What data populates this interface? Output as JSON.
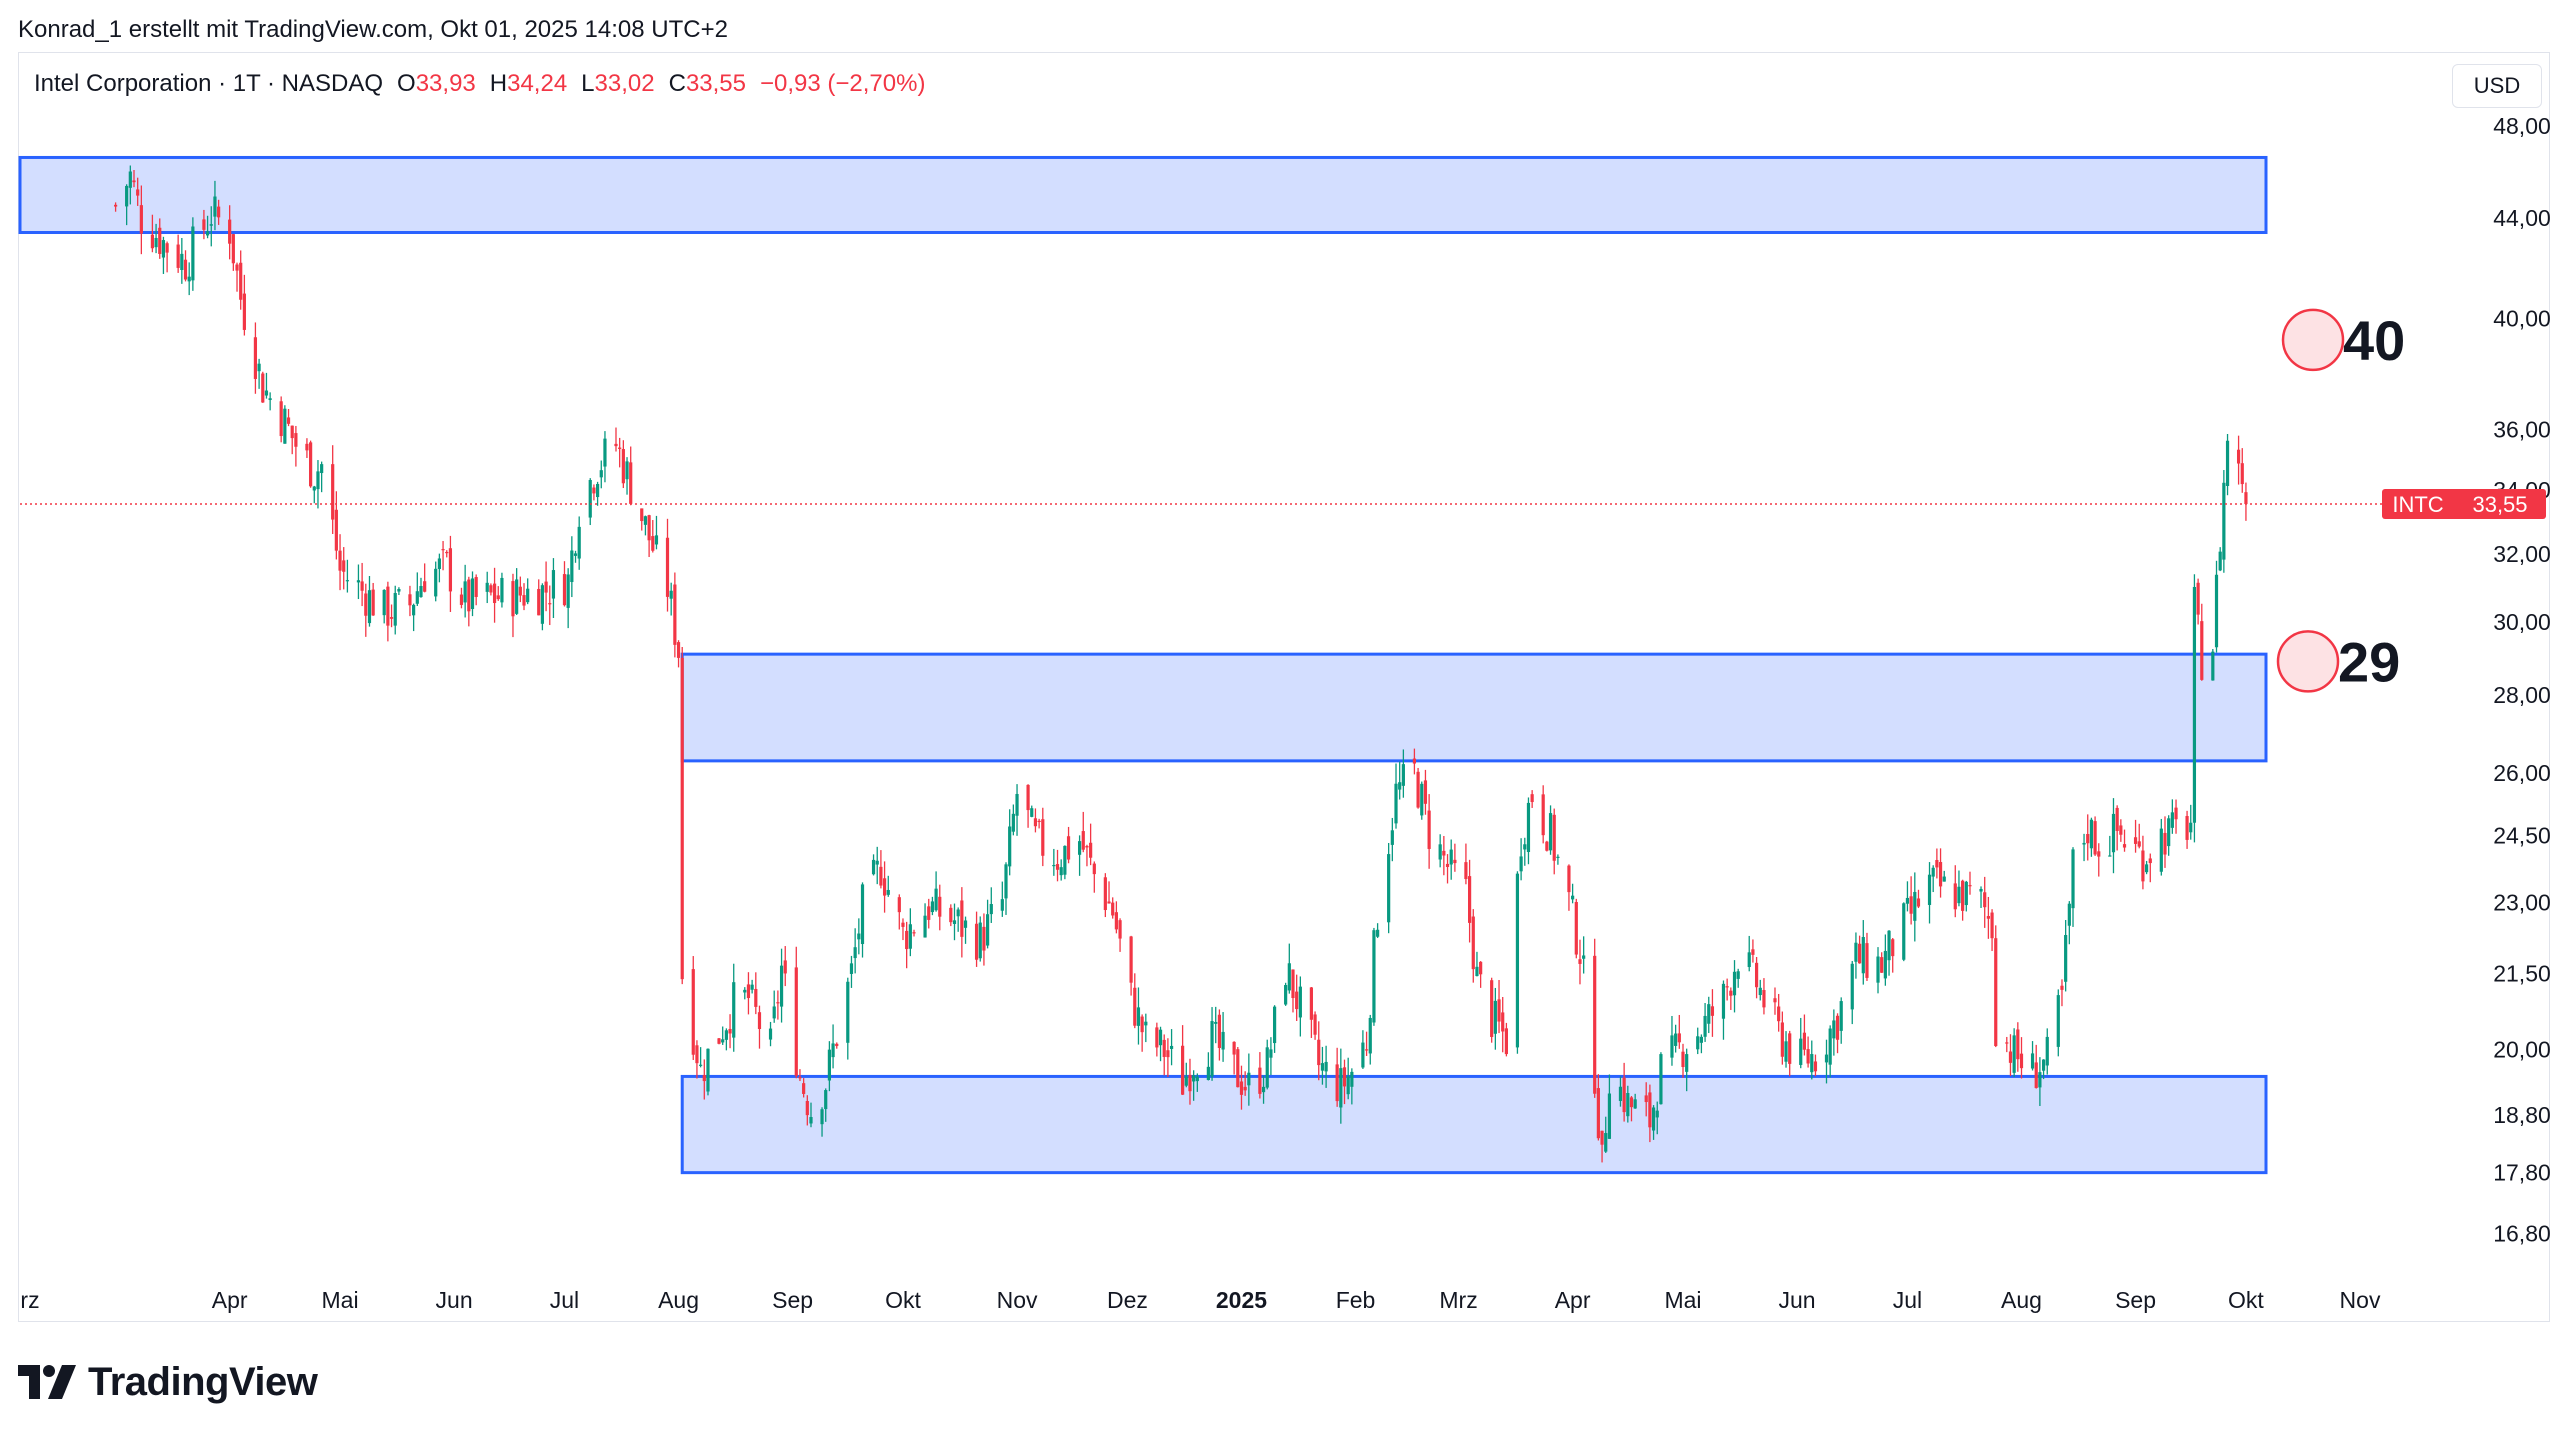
{
  "credit": "Konrad_1 erstellt mit TradingView.com, Okt 01, 2025 14:08 UTC+2",
  "legend": {
    "symbol": "Intel Corporation · 1T · NASDAQ",
    "open_label": "O",
    "open": "33,93",
    "high_label": "H",
    "high": "34,24",
    "low_label": "L",
    "low": "33,02",
    "close_label": "C",
    "close": "33,55",
    "change": "−0,93 (−2,70%)"
  },
  "currency": "USD",
  "price_tag": {
    "ticker": "INTC",
    "value": "33,55"
  },
  "annotations": [
    {
      "text": "40",
      "price": 39.2
    },
    {
      "text": "29",
      "price": 28.9
    }
  ],
  "logo_text": "TradingView",
  "colors": {
    "up": "#089981",
    "down": "#f23645",
    "zone_fill": "#d1dcff",
    "zone_stroke": "#2962ff",
    "grid": "#f0f3fa"
  },
  "chart_data": {
    "type": "candlestick",
    "title": "Intel Corporation · 1T · NASDAQ",
    "scale": "log",
    "ylim": [
      16.2,
      51.5
    ],
    "y_ticks": [
      "48,00",
      "44,00",
      "40,00",
      "36,00",
      "34,00",
      "32,00",
      "30,00",
      "28,00",
      "26,00",
      "24,50",
      "23,00",
      "21,50",
      "20,00",
      "18,80",
      "17,80",
      "16,80"
    ],
    "x_ticks": [
      "rz",
      "Apr",
      "Mai",
      "Jun",
      "Jul",
      "Aug",
      "Sep",
      "Okt",
      "Nov",
      "Dez",
      "2025",
      "Feb",
      "Mrz",
      "Apr",
      "Mai",
      "Jun",
      "Jul",
      "Aug",
      "Sep",
      "Okt",
      "Nov"
    ],
    "zones": [
      {
        "from_date": "2024-03-01",
        "to_date": "2025-10-01",
        "low": 43.4,
        "high": 46.6
      },
      {
        "from_date": "2024-08-02",
        "to_date": "2025-10-01",
        "low": 26.3,
        "high": 29.1
      },
      {
        "from_date": "2024-08-02",
        "to_date": "2025-10-01",
        "low": 17.8,
        "high": 19.5
      }
    ],
    "current_price": 33.55,
    "anchors": [
      [
        "2024-03-01",
        44.5
      ],
      [
        "2024-03-05",
        45.8
      ],
      [
        "2024-03-08",
        44.0
      ],
      [
        "2024-03-14",
        43.0
      ],
      [
        "2024-03-20",
        42.2
      ],
      [
        "2024-03-27",
        44.2
      ],
      [
        "2024-04-01",
        43.5
      ],
      [
        "2024-04-04",
        40.8
      ],
      [
        "2024-04-10",
        37.5
      ],
      [
        "2024-04-15",
        36.5
      ],
      [
        "2024-04-19",
        35.5
      ],
      [
        "2024-04-24",
        34.6
      ],
      [
        "2024-04-26",
        34.8
      ],
      [
        "2024-05-01",
        31.5
      ],
      [
        "2024-05-07",
        30.9
      ],
      [
        "2024-05-13",
        30.3
      ],
      [
        "2024-05-20",
        30.5
      ],
      [
        "2024-05-24",
        31.4
      ],
      [
        "2024-05-30",
        31.6
      ],
      [
        "2024-06-04",
        30.6
      ],
      [
        "2024-06-11",
        30.7
      ],
      [
        "2024-06-18",
        30.8
      ],
      [
        "2024-06-25",
        30.9
      ],
      [
        "2024-07-02",
        31.2
      ],
      [
        "2024-07-05",
        33.5
      ],
      [
        "2024-07-10",
        34.8
      ],
      [
        "2024-07-15",
        35.5
      ],
      [
        "2024-07-18",
        34.5
      ],
      [
        "2024-07-24",
        32.5
      ],
      [
        "2024-07-29",
        31.0
      ],
      [
        "2024-08-01",
        29.2
      ],
      [
        "2024-08-02",
        21.5
      ],
      [
        "2024-08-07",
        19.6
      ],
      [
        "2024-08-12",
        20.3
      ],
      [
        "2024-08-16",
        20.9
      ],
      [
        "2024-08-20",
        21.0
      ],
      [
        "2024-08-26",
        20.0
      ],
      [
        "2024-08-29",
        21.6
      ],
      [
        "2024-09-03",
        19.5
      ],
      [
        "2024-09-06",
        18.9
      ],
      [
        "2024-09-10",
        19.4
      ],
      [
        "2024-09-17",
        21.5
      ],
      [
        "2024-09-20",
        22.9
      ],
      [
        "2024-09-25",
        23.8
      ],
      [
        "2024-10-01",
        22.3
      ],
      [
        "2024-10-08",
        22.9
      ],
      [
        "2024-10-15",
        22.6
      ],
      [
        "2024-10-22",
        22.2
      ],
      [
        "2024-10-28",
        23.0
      ],
      [
        "2024-11-01",
        25.5
      ],
      [
        "2024-11-06",
        24.4
      ],
      [
        "2024-11-12",
        24.0
      ],
      [
        "2024-11-18",
        24.4
      ],
      [
        "2024-11-22",
        23.6
      ],
      [
        "2024-11-27",
        22.8
      ],
      [
        "2024-12-02",
        21.0
      ],
      [
        "2024-12-06",
        20.2
      ],
      [
        "2024-12-11",
        20.0
      ],
      [
        "2024-12-16",
        19.4
      ],
      [
        "2024-12-19",
        19.8
      ],
      [
        "2024-12-24",
        20.2
      ],
      [
        "2024-12-30",
        19.6
      ],
      [
        "2025-01-03",
        19.3
      ],
      [
        "2025-01-08",
        19.7
      ],
      [
        "2025-01-13",
        21.6
      ],
      [
        "2025-01-17",
        20.8
      ],
      [
        "2025-01-22",
        19.7
      ],
      [
        "2025-01-28",
        19.3
      ],
      [
        "2025-01-31",
        19.6
      ],
      [
        "2025-02-04",
        20.2
      ],
      [
        "2025-02-07",
        22.8
      ],
      [
        "2025-02-12",
        25.5
      ],
      [
        "2025-02-17",
        26.0
      ],
      [
        "2025-02-21",
        24.6
      ],
      [
        "2025-02-26",
        23.8
      ],
      [
        "2025-03-03",
        23.2
      ],
      [
        "2025-03-06",
        21.4
      ],
      [
        "2025-03-10",
        20.6
      ],
      [
        "2025-03-14",
        20.2
      ],
      [
        "2025-03-18",
        24.5
      ],
      [
        "2025-03-21",
        25.5
      ],
      [
        "2025-03-26",
        24.5
      ],
      [
        "2025-03-31",
        23.0
      ],
      [
        "2025-04-03",
        22.0
      ],
      [
        "2025-04-07",
        19.6
      ],
      [
        "2025-04-09",
        17.9
      ],
      [
        "2025-04-11",
        19.6
      ],
      [
        "2025-04-16",
        19.0
      ],
      [
        "2025-04-22",
        18.7
      ],
      [
        "2025-04-25",
        19.6
      ],
      [
        "2025-04-30",
        20.0
      ],
      [
        "2025-05-06",
        20.4
      ],
      [
        "2025-05-12",
        21.0
      ],
      [
        "2025-05-16",
        21.9
      ],
      [
        "2025-05-21",
        21.3
      ],
      [
        "2025-05-27",
        20.3
      ],
      [
        "2025-06-02",
        19.8
      ],
      [
        "2025-06-06",
        19.9
      ],
      [
        "2025-06-12",
        20.6
      ],
      [
        "2025-06-17",
        21.8
      ],
      [
        "2025-06-24",
        21.7
      ],
      [
        "2025-06-30",
        22.5
      ],
      [
        "2025-07-07",
        23.4
      ],
      [
        "2025-07-14",
        23.2
      ],
      [
        "2025-07-21",
        23.0
      ],
      [
        "2025-07-24",
        22.5
      ],
      [
        "2025-07-25",
        20.5
      ],
      [
        "2025-07-30",
        19.9
      ],
      [
        "2025-08-04",
        19.6
      ],
      [
        "2025-08-08",
        19.8
      ],
      [
        "2025-08-12",
        21.0
      ],
      [
        "2025-08-15",
        23.8
      ],
      [
        "2025-08-19",
        24.7
      ],
      [
        "2025-08-22",
        24.3
      ],
      [
        "2025-08-27",
        24.6
      ],
      [
        "2025-09-03",
        24.0
      ],
      [
        "2025-09-08",
        24.5
      ],
      [
        "2025-09-12",
        24.6
      ],
      [
        "2025-09-16",
        24.8
      ],
      [
        "2025-09-17",
        30.4
      ],
      [
        "2025-09-18",
        29.6
      ],
      [
        "2025-09-19",
        29.0
      ],
      [
        "2025-09-22",
        29.4
      ],
      [
        "2025-09-24",
        32.5
      ],
      [
        "2025-09-26",
        35.8
      ],
      [
        "2025-09-29",
        34.6
      ],
      [
        "2025-09-30",
        34.5
      ],
      [
        "2025-10-01",
        33.55
      ]
    ]
  }
}
